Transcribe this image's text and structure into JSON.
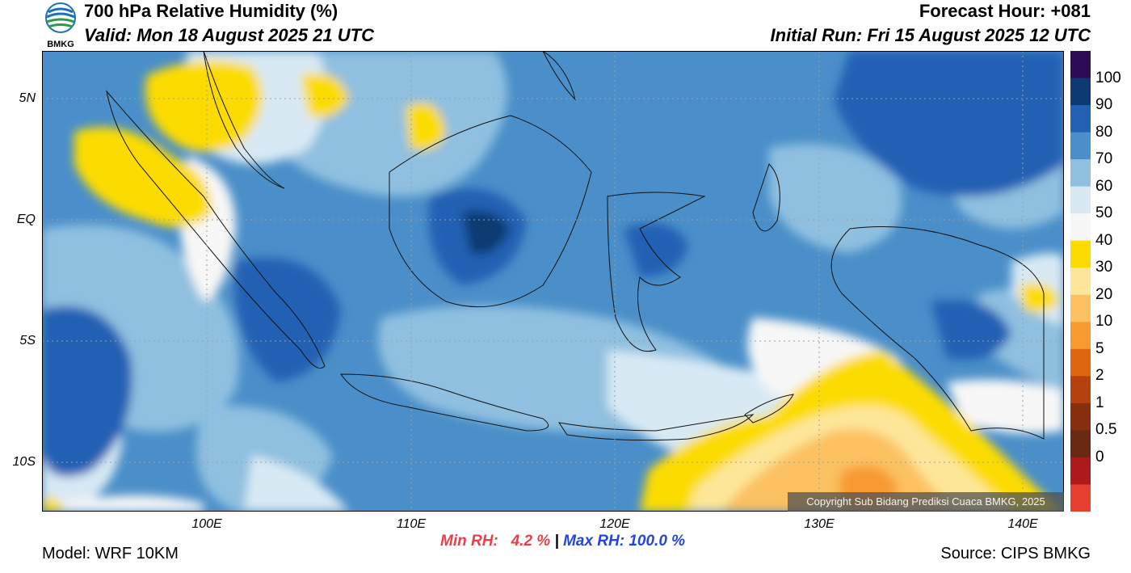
{
  "header": {
    "title": "700 hPa Relative Humidity (%)",
    "valid": "Valid: Mon 18 August 2025 21 UTC",
    "forecast_hour": "Forecast Hour: +081",
    "initial_run": "Initial Run: Fri 15 August 2025 12 UTC"
  },
  "logo": {
    "text": "BMKG"
  },
  "map": {
    "lat_labels": [
      "5N",
      "EQ",
      "5S",
      "10S"
    ],
    "lon_labels": [
      "100E",
      "110E",
      "120E",
      "130E",
      "140E"
    ],
    "copyright": "Copyright Sub Bidang Prediksi Cuaca BMKG, 2025"
  },
  "colorbar": {
    "labels": [
      "100",
      "90",
      "80",
      "70",
      "60",
      "50",
      "40",
      "30",
      "20",
      "10",
      "5",
      "2",
      "1",
      "0.5",
      "0"
    ],
    "colors": [
      "#2d0b55",
      "#0d3a72",
      "#2461b4",
      "#4a8fc9",
      "#8fc0e0",
      "#d8e9f4",
      "#f7f7f7",
      "#fcdc00",
      "#fde69a",
      "#fcc160",
      "#f89a30",
      "#e06511",
      "#b5410e",
      "#872f0d",
      "#6a2a12",
      "#ad1a1a",
      "#e84030"
    ]
  },
  "stats": {
    "min_rh": "Min RH:   4.2 %",
    "separator": " | ",
    "max_rh": "Max RH: 100.0 %"
  },
  "footer": {
    "model": "Model: WRF 10KM",
    "source": "Source: CIPS BMKG"
  }
}
